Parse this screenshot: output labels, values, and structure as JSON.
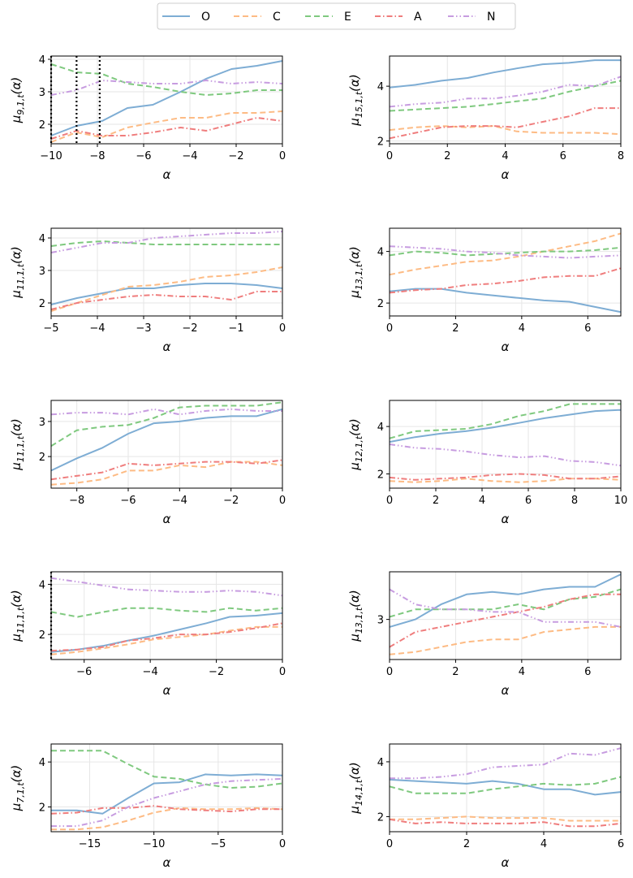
{
  "legend": [
    {
      "label": "O",
      "color": "#7eadd4",
      "dash": "solid"
    },
    {
      "label": "C",
      "color": "#fdbb84",
      "dash": "dashed"
    },
    {
      "label": "E",
      "color": "#7fc97f",
      "dash": "dashed"
    },
    {
      "label": "A",
      "color": "#ef7d7d",
      "dash": "dashdot"
    },
    {
      "label": "N",
      "color": "#c79ce0",
      "dash": "dashdotdot"
    }
  ],
  "chart_data": [
    {
      "type": "line",
      "ylabel": "μ9,1,t(α)",
      "xlabel": "α",
      "xlim": [
        -10,
        0
      ],
      "ylim": [
        1.4,
        4.1
      ],
      "xticks": [
        -10,
        -8,
        -6,
        -4,
        -2,
        0
      ],
      "yticks": [
        2,
        3,
        4
      ],
      "vlines": [
        -10,
        -8.9,
        -7.9
      ],
      "x": [
        -10,
        -8.9,
        -7.8,
        -6.7,
        -5.6,
        -4.4,
        -3.3,
        -2.2,
        -1.1,
        0
      ],
      "series": [
        {
          "name": "O",
          "values": [
            1.65,
            1.95,
            2.1,
            2.5,
            2.6,
            3.0,
            3.4,
            3.7,
            3.8,
            3.95
          ]
        },
        {
          "name": "C",
          "values": [
            1.45,
            1.75,
            1.6,
            1.9,
            2.05,
            2.2,
            2.2,
            2.35,
            2.35,
            2.4
          ]
        },
        {
          "name": "E",
          "values": [
            3.85,
            3.6,
            3.55,
            3.25,
            3.15,
            3.0,
            2.9,
            2.95,
            3.05,
            3.05
          ]
        },
        {
          "name": "A",
          "values": [
            1.55,
            1.8,
            1.65,
            1.65,
            1.75,
            1.9,
            1.8,
            2.0,
            2.2,
            2.1
          ]
        },
        {
          "name": "N",
          "values": [
            2.9,
            3.05,
            3.35,
            3.3,
            3.25,
            3.25,
            3.35,
            3.25,
            3.3,
            3.25
          ]
        }
      ]
    },
    {
      "type": "line",
      "ylabel": "μ15,1,t(α)",
      "xlabel": "α",
      "xlim": [
        0,
        8
      ],
      "ylim": [
        1.9,
        5.1
      ],
      "xticks": [
        0,
        2,
        4,
        6,
        8
      ],
      "yticks": [
        2,
        4
      ],
      "vlines": [],
      "x": [
        0,
        0.9,
        1.8,
        2.7,
        3.6,
        4.4,
        5.3,
        6.2,
        7.1,
        8
      ],
      "series": [
        {
          "name": "O",
          "values": [
            3.95,
            4.05,
            4.2,
            4.3,
            4.5,
            4.65,
            4.8,
            4.85,
            4.95,
            4.95
          ]
        },
        {
          "name": "C",
          "values": [
            2.4,
            2.5,
            2.55,
            2.5,
            2.55,
            2.35,
            2.3,
            2.3,
            2.3,
            2.25
          ]
        },
        {
          "name": "E",
          "values": [
            3.1,
            3.15,
            3.2,
            3.25,
            3.35,
            3.45,
            3.55,
            3.8,
            4.0,
            4.2
          ]
        },
        {
          "name": "A",
          "values": [
            2.1,
            2.3,
            2.5,
            2.55,
            2.55,
            2.5,
            2.7,
            2.9,
            3.2,
            3.2
          ]
        },
        {
          "name": "N",
          "values": [
            3.25,
            3.35,
            3.4,
            3.55,
            3.55,
            3.65,
            3.8,
            4.05,
            4.0,
            4.35
          ]
        }
      ]
    },
    {
      "type": "line",
      "ylabel": "μ11,1,t(α)",
      "xlabel": "α",
      "xlim": [
        -5,
        0
      ],
      "ylim": [
        1.6,
        4.3
      ],
      "xticks": [
        -5,
        -4,
        -3,
        -2,
        -1,
        0
      ],
      "yticks": [
        2,
        3,
        4
      ],
      "vlines": [],
      "x": [
        -5,
        -4.44,
        -3.89,
        -3.33,
        -2.78,
        -2.22,
        -1.67,
        -1.11,
        -0.56,
        0
      ],
      "series": [
        {
          "name": "O",
          "values": [
            1.95,
            2.15,
            2.3,
            2.45,
            2.45,
            2.55,
            2.6,
            2.6,
            2.55,
            2.45
          ]
        },
        {
          "name": "C",
          "values": [
            1.75,
            2.0,
            2.25,
            2.5,
            2.55,
            2.65,
            2.8,
            2.85,
            2.95,
            3.1
          ]
        },
        {
          "name": "E",
          "values": [
            3.75,
            3.85,
            3.9,
            3.85,
            3.8,
            3.8,
            3.8,
            3.8,
            3.8,
            3.8
          ]
        },
        {
          "name": "A",
          "values": [
            1.8,
            2.0,
            2.1,
            2.2,
            2.25,
            2.2,
            2.2,
            2.1,
            2.35,
            2.35
          ]
        },
        {
          "name": "N",
          "values": [
            3.55,
            3.7,
            3.85,
            3.85,
            4.0,
            4.05,
            4.1,
            4.15,
            4.15,
            4.2
          ]
        }
      ]
    },
    {
      "type": "line",
      "ylabel": "μ13,1,t(α)",
      "xlabel": "α",
      "xlim": [
        0,
        7
      ],
      "ylim": [
        1.5,
        4.9
      ],
      "xticks": [
        0,
        2,
        4,
        6
      ],
      "yticks": [
        2,
        4
      ],
      "vlines": [],
      "x": [
        0,
        0.78,
        1.56,
        2.33,
        3.11,
        3.89,
        4.67,
        5.44,
        6.22,
        7
      ],
      "series": [
        {
          "name": "O",
          "values": [
            2.45,
            2.55,
            2.55,
            2.4,
            2.3,
            2.2,
            2.1,
            2.05,
            1.85,
            1.65
          ]
        },
        {
          "name": "C",
          "values": [
            3.1,
            3.3,
            3.45,
            3.6,
            3.65,
            3.8,
            4.0,
            4.2,
            4.4,
            4.7
          ]
        },
        {
          "name": "E",
          "values": [
            3.85,
            4.0,
            3.95,
            3.85,
            3.9,
            3.95,
            4.0,
            4.0,
            4.05,
            4.15
          ]
        },
        {
          "name": "A",
          "values": [
            2.4,
            2.5,
            2.55,
            2.7,
            2.75,
            2.85,
            3.0,
            3.05,
            3.05,
            3.35
          ]
        },
        {
          "name": "N",
          "values": [
            4.2,
            4.15,
            4.1,
            4.0,
            3.95,
            3.85,
            3.8,
            3.75,
            3.8,
            3.85
          ]
        }
      ]
    },
    {
      "type": "line",
      "ylabel": "μ11,1,t(α)",
      "xlabel": "α",
      "xlim": [
        -9,
        0
      ],
      "ylim": [
        1.1,
        3.6
      ],
      "xticks": [
        -8,
        -6,
        -4,
        -2,
        0
      ],
      "yticks": [
        2,
        3
      ],
      "vlines": [],
      "x": [
        -9,
        -8,
        -7,
        -6,
        -5,
        -4,
        -3,
        -2,
        -1,
        0
      ],
      "series": [
        {
          "name": "O",
          "values": [
            1.6,
            1.95,
            2.25,
            2.65,
            2.95,
            3.0,
            3.1,
            3.15,
            3.15,
            3.35
          ]
        },
        {
          "name": "C",
          "values": [
            1.2,
            1.25,
            1.35,
            1.6,
            1.6,
            1.75,
            1.7,
            1.85,
            1.85,
            1.75
          ]
        },
        {
          "name": "E",
          "values": [
            2.3,
            2.75,
            2.85,
            2.9,
            3.1,
            3.4,
            3.45,
            3.45,
            3.45,
            3.55
          ]
        },
        {
          "name": "A",
          "values": [
            1.35,
            1.45,
            1.55,
            1.8,
            1.75,
            1.8,
            1.85,
            1.85,
            1.8,
            1.9
          ]
        },
        {
          "name": "N",
          "values": [
            3.2,
            3.25,
            3.25,
            3.2,
            3.35,
            3.2,
            3.3,
            3.35,
            3.3,
            3.3
          ]
        }
      ]
    },
    {
      "type": "line",
      "ylabel": "μ12,1,t(α)",
      "xlabel": "α",
      "xlim": [
        0,
        10
      ],
      "ylim": [
        1.4,
        5.1
      ],
      "xticks": [
        0,
        2,
        4,
        6,
        8,
        10
      ],
      "yticks": [
        2,
        4
      ],
      "vlines": [],
      "x": [
        0,
        1.1,
        2.2,
        3.3,
        4.4,
        5.6,
        6.7,
        7.8,
        8.9,
        10
      ],
      "series": [
        {
          "name": "O",
          "values": [
            3.35,
            3.55,
            3.7,
            3.8,
            3.95,
            4.15,
            4.35,
            4.5,
            4.65,
            4.7
          ]
        },
        {
          "name": "C",
          "values": [
            1.7,
            1.65,
            1.7,
            1.8,
            1.7,
            1.65,
            1.7,
            1.8,
            1.8,
            1.75
          ]
        },
        {
          "name": "E",
          "values": [
            3.5,
            3.8,
            3.85,
            3.9,
            4.1,
            4.45,
            4.65,
            4.95,
            4.95,
            4.95
          ]
        },
        {
          "name": "A",
          "values": [
            1.85,
            1.75,
            1.8,
            1.85,
            1.95,
            2.0,
            1.95,
            1.8,
            1.8,
            1.9
          ]
        },
        {
          "name": "N",
          "values": [
            3.25,
            3.1,
            3.05,
            2.95,
            2.8,
            2.7,
            2.75,
            2.55,
            2.5,
            2.35
          ]
        }
      ]
    },
    {
      "type": "line",
      "ylabel": "μ11,1,t(α)",
      "xlabel": "α",
      "xlim": [
        -7,
        0
      ],
      "ylim": [
        1.0,
        4.5
      ],
      "xticks": [
        -6,
        -4,
        -2,
        0
      ],
      "yticks": [
        2,
        4
      ],
      "vlines": [
        -7
      ],
      "x": [
        -7,
        -6.2,
        -5.4,
        -4.7,
        -3.9,
        -3.1,
        -2.3,
        -1.6,
        -0.8,
        0
      ],
      "series": [
        {
          "name": "O",
          "values": [
            1.3,
            1.4,
            1.55,
            1.75,
            1.95,
            2.2,
            2.45,
            2.7,
            2.75,
            2.85
          ]
        },
        {
          "name": "C",
          "values": [
            1.2,
            1.3,
            1.45,
            1.6,
            1.8,
            1.9,
            2.0,
            2.15,
            2.3,
            2.3
          ]
        },
        {
          "name": "E",
          "values": [
            2.9,
            2.7,
            2.9,
            3.05,
            3.05,
            2.95,
            2.9,
            3.05,
            2.95,
            3.05
          ]
        },
        {
          "name": "A",
          "values": [
            1.35,
            1.4,
            1.5,
            1.75,
            1.85,
            2.0,
            2.0,
            2.1,
            2.25,
            2.45
          ]
        },
        {
          "name": "N",
          "values": [
            4.25,
            4.1,
            3.95,
            3.8,
            3.75,
            3.7,
            3.7,
            3.75,
            3.7,
            3.55
          ]
        }
      ]
    },
    {
      "type": "line",
      "ylabel": "μ13,1,t(α)",
      "xlabel": "α",
      "xlim": [
        0,
        7
      ],
      "ylim": [
        2.2,
        3.95
      ],
      "xticks": [
        0,
        2,
        4,
        6
      ],
      "yticks": [
        3
      ],
      "vlines": [],
      "x": [
        0,
        0.78,
        1.56,
        2.33,
        3.11,
        3.89,
        4.67,
        5.44,
        6.22,
        7
      ],
      "series": [
        {
          "name": "O",
          "values": [
            2.85,
            3.0,
            3.3,
            3.5,
            3.55,
            3.5,
            3.6,
            3.65,
            3.65,
            3.9
          ]
        },
        {
          "name": "C",
          "values": [
            2.3,
            2.35,
            2.45,
            2.55,
            2.6,
            2.6,
            2.75,
            2.8,
            2.85,
            2.85
          ]
        },
        {
          "name": "E",
          "values": [
            3.05,
            3.2,
            3.2,
            3.2,
            3.2,
            3.3,
            3.2,
            3.4,
            3.45,
            3.6
          ]
        },
        {
          "name": "A",
          "values": [
            2.45,
            2.75,
            2.85,
            2.95,
            3.05,
            3.15,
            3.25,
            3.4,
            3.5,
            3.5
          ]
        },
        {
          "name": "N",
          "values": [
            3.6,
            3.3,
            3.2,
            3.2,
            3.15,
            3.15,
            2.95,
            2.95,
            2.95,
            2.85
          ]
        }
      ]
    },
    {
      "type": "line",
      "ylabel": "μ7,1,t(α)",
      "xlabel": "α",
      "xlim": [
        -18,
        0
      ],
      "ylim": [
        0.9,
        4.8
      ],
      "xticks": [
        -15,
        -10,
        -5,
        0
      ],
      "yticks": [
        2,
        4
      ],
      "vlines": [],
      "x": [
        -18,
        -16,
        -14,
        -12,
        -10,
        -8,
        -6,
        -4,
        -2,
        0
      ],
      "series": [
        {
          "name": "O",
          "values": [
            1.85,
            1.85,
            1.7,
            2.4,
            3.05,
            3.1,
            3.45,
            3.4,
            3.45,
            3.4
          ]
        },
        {
          "name": "C",
          "values": [
            1.0,
            1.0,
            1.1,
            1.4,
            1.75,
            1.95,
            1.9,
            1.9,
            1.95,
            1.9
          ]
        },
        {
          "name": "E",
          "values": [
            4.5,
            4.5,
            4.5,
            3.9,
            3.35,
            3.25,
            3.0,
            2.85,
            2.9,
            3.05
          ]
        },
        {
          "name": "A",
          "values": [
            1.7,
            1.75,
            1.95,
            1.95,
            2.05,
            1.9,
            1.85,
            1.8,
            1.9,
            1.9
          ]
        },
        {
          "name": "N",
          "values": [
            1.15,
            1.15,
            1.4,
            2.0,
            2.4,
            2.7,
            3.0,
            3.15,
            3.2,
            3.25
          ]
        }
      ]
    },
    {
      "type": "line",
      "ylabel": "μ14,1,t(α)",
      "xlabel": "α",
      "xlim": [
        0,
        6
      ],
      "ylim": [
        1.45,
        4.65
      ],
      "xticks": [
        0,
        2,
        4,
        6
      ],
      "yticks": [
        2,
        4
      ],
      "vlines": [],
      "x": [
        0,
        0.67,
        1.33,
        2.0,
        2.67,
        3.33,
        4.0,
        4.67,
        5.33,
        6
      ],
      "series": [
        {
          "name": "O",
          "values": [
            3.35,
            3.3,
            3.25,
            3.2,
            3.3,
            3.2,
            3.0,
            3.0,
            2.8,
            2.9
          ]
        },
        {
          "name": "C",
          "values": [
            1.9,
            1.9,
            1.95,
            2.0,
            1.95,
            1.95,
            1.95,
            1.85,
            1.85,
            1.85
          ]
        },
        {
          "name": "E",
          "values": [
            3.1,
            2.85,
            2.85,
            2.85,
            3.0,
            3.1,
            3.2,
            3.15,
            3.2,
            3.45
          ]
        },
        {
          "name": "A",
          "values": [
            1.9,
            1.75,
            1.8,
            1.75,
            1.75,
            1.75,
            1.8,
            1.65,
            1.65,
            1.75
          ]
        },
        {
          "name": "N",
          "values": [
            3.4,
            3.4,
            3.45,
            3.55,
            3.8,
            3.85,
            3.9,
            4.3,
            4.25,
            4.5
          ]
        }
      ]
    }
  ]
}
